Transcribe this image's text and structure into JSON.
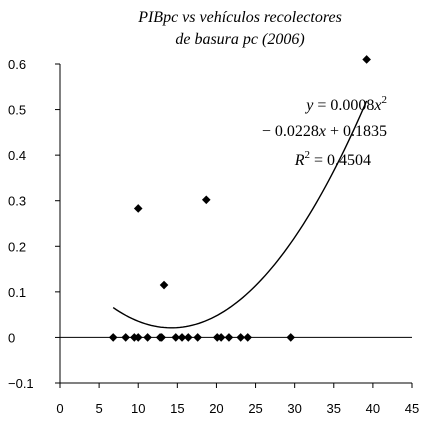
{
  "chart_data": {
    "type": "scatter",
    "title": "PIBpc vs vehículos recolectores",
    "subtitle": "de basura pc (2006)",
    "xlabel": "",
    "ylabel": "",
    "xlim": [
      0,
      45
    ],
    "ylim": [
      -0.1,
      0.6
    ],
    "x_ticks": [
      "0",
      "5",
      "10",
      "15",
      "20",
      "25",
      "30",
      "35",
      "40",
      "45"
    ],
    "y_ticks": [
      "0.6",
      "0.5",
      "0.4",
      "0.3",
      "0.2",
      "0.1",
      "0",
      "−0.1"
    ],
    "grid": false,
    "legend": "none",
    "marker": "diamond",
    "marker_color": "#000000",
    "points": [
      {
        "x": 6.8,
        "y": 0.0
      },
      {
        "x": 8.4,
        "y": 0.0
      },
      {
        "x": 9.5,
        "y": 0.0
      },
      {
        "x": 10.0,
        "y": 0.0
      },
      {
        "x": 10.0,
        "y": 0.283
      },
      {
        "x": 11.2,
        "y": 0.0
      },
      {
        "x": 12.8,
        "y": 0.0
      },
      {
        "x": 13.0,
        "y": 0.0
      },
      {
        "x": 13.3,
        "y": 0.115
      },
      {
        "x": 14.8,
        "y": 0.0
      },
      {
        "x": 15.6,
        "y": 0.0
      },
      {
        "x": 16.4,
        "y": 0.0
      },
      {
        "x": 17.6,
        "y": 0.0
      },
      {
        "x": 18.7,
        "y": 0.302
      },
      {
        "x": 20.1,
        "y": 0.0
      },
      {
        "x": 20.6,
        "y": 0.0
      },
      {
        "x": 21.6,
        "y": 0.0
      },
      {
        "x": 23.1,
        "y": 0.0
      },
      {
        "x": 24.0,
        "y": 0.0
      },
      {
        "x": 29.5,
        "y": 0.0
      },
      {
        "x": 39.2,
        "y": 0.61
      }
    ],
    "trendline": {
      "type": "polynomial",
      "coefficients": [
        0.0008,
        -0.0228,
        0.1835
      ],
      "x_range": [
        6.8,
        39.2
      ],
      "r2": 0.4504
    },
    "annotation": {
      "eq_y": "y",
      "eq_equals": " = 0.0008",
      "eq_x1": "x",
      "eq_sup1": "2",
      "eq_line2_a": "− 0.0228",
      "eq_x2": "x",
      "eq_line2_b": " + 0.1835",
      "eq_r": "R",
      "eq_sup2": "2",
      "eq_r2_value": " = 0.4504"
    }
  }
}
